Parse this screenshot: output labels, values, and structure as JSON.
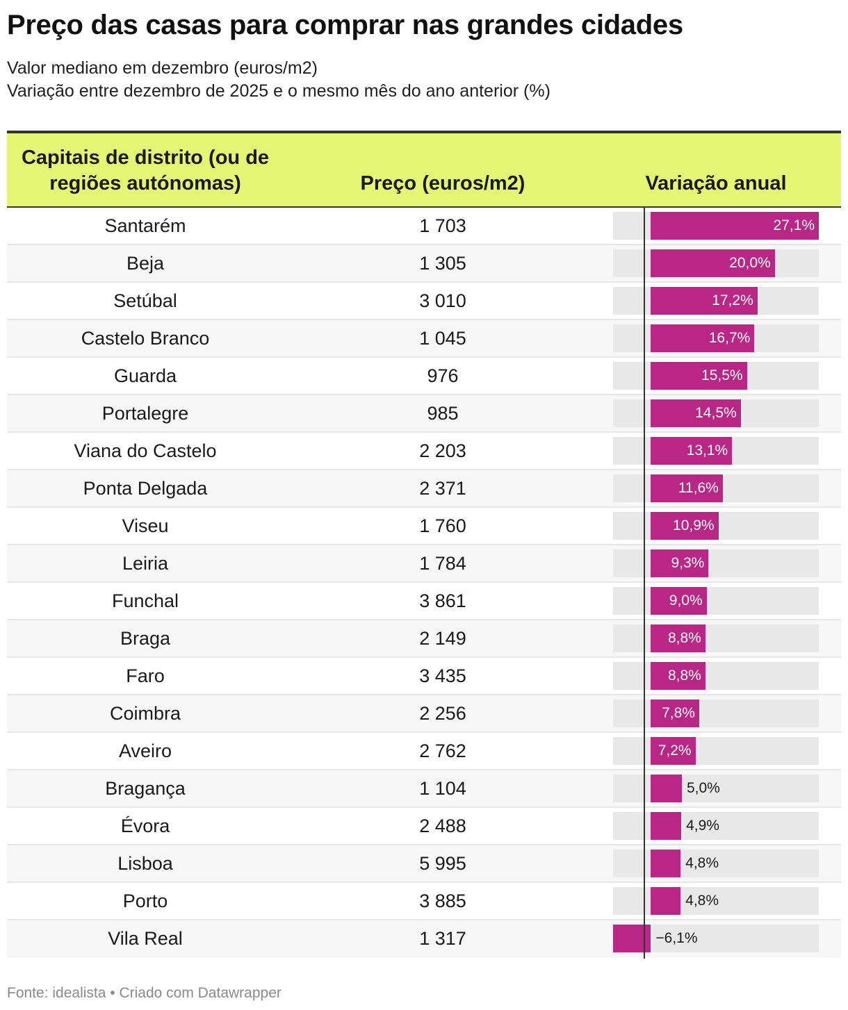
{
  "title": "Preço das casas para comprar nas grandes cidades",
  "subtitle_line1": "Valor mediano em dezembro (euros/m2)",
  "subtitle_line2": "Variação entre dezembro de 2025 e o mesmo mês do ano anterior (%)",
  "headers": {
    "city": "Capitais de distrito (ou de regiões autónomas)",
    "price": "Preço (euros/m2)",
    "variation": "Variação anual"
  },
  "footer": "Fonte: idealista • Criado com Datawrapper",
  "colors": {
    "header_bg": "#e3f572",
    "bar": "#ba2685",
    "bar_track": "#e8e8e8"
  },
  "chart_data": {
    "type": "table",
    "columns": [
      "Capitais de distrito (ou de regiões autónomas)",
      "Preço (euros/m2)",
      "Variação anual"
    ],
    "bar_range": [
      -6.1,
      27.1
    ],
    "rows": [
      {
        "city": "Santarém",
        "price": "1 703",
        "variation": 27.1,
        "variation_label": "27,1%"
      },
      {
        "city": "Beja",
        "price": "1 305",
        "variation": 20.0,
        "variation_label": "20,0%"
      },
      {
        "city": "Setúbal",
        "price": "3 010",
        "variation": 17.2,
        "variation_label": "17,2%"
      },
      {
        "city": "Castelo Branco",
        "price": "1 045",
        "variation": 16.7,
        "variation_label": "16,7%"
      },
      {
        "city": "Guarda",
        "price": "976",
        "variation": 15.5,
        "variation_label": "15,5%"
      },
      {
        "city": "Portalegre",
        "price": "985",
        "variation": 14.5,
        "variation_label": "14,5%"
      },
      {
        "city": "Viana do Castelo",
        "price": "2 203",
        "variation": 13.1,
        "variation_label": "13,1%"
      },
      {
        "city": "Ponta Delgada",
        "price": "2 371",
        "variation": 11.6,
        "variation_label": "11,6%"
      },
      {
        "city": "Viseu",
        "price": "1 760",
        "variation": 10.9,
        "variation_label": "10,9%"
      },
      {
        "city": "Leiria",
        "price": "1 784",
        "variation": 9.3,
        "variation_label": "9,3%"
      },
      {
        "city": "Funchal",
        "price": "3 861",
        "variation": 9.0,
        "variation_label": "9,0%"
      },
      {
        "city": "Braga",
        "price": "2 149",
        "variation": 8.8,
        "variation_label": "8,8%"
      },
      {
        "city": "Faro",
        "price": "3 435",
        "variation": 8.8,
        "variation_label": "8,8%"
      },
      {
        "city": "Coimbra",
        "price": "2 256",
        "variation": 7.8,
        "variation_label": "7,8%"
      },
      {
        "city": "Aveiro",
        "price": "2 762",
        "variation": 7.2,
        "variation_label": "7,2%"
      },
      {
        "city": "Bragança",
        "price": "1 104",
        "variation": 5.0,
        "variation_label": "5,0%"
      },
      {
        "city": "Évora",
        "price": "2 488",
        "variation": 4.9,
        "variation_label": "4,9%"
      },
      {
        "city": "Lisboa",
        "price": "5 995",
        "variation": 4.8,
        "variation_label": "4,8%"
      },
      {
        "city": "Porto",
        "price": "3 885",
        "variation": 4.8,
        "variation_label": "4,8%"
      },
      {
        "city": "Vila Real",
        "price": "1 317",
        "variation": -6.1,
        "variation_label": "−6,1%"
      }
    ]
  }
}
